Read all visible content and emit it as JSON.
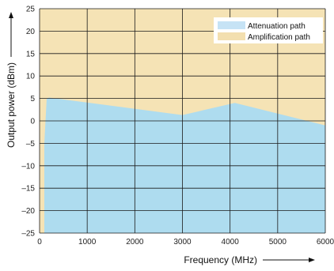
{
  "chart_data": {
    "type": "area",
    "title": "",
    "xlabel": "Frequency (MHz)",
    "ylabel": "Output power (dBm)",
    "xlim": [
      0,
      6000
    ],
    "ylim": [
      -25,
      25
    ],
    "xticks": [
      0,
      1000,
      2000,
      3000,
      4000,
      5000,
      6000
    ],
    "yticks": [
      -25,
      -20,
      -15,
      -10,
      -5,
      0,
      5,
      10,
      15,
      20,
      25
    ],
    "grid": true,
    "legend_position": "top-right",
    "series": [
      {
        "name": "Amplification path",
        "color": "#f5e3b5",
        "region": "above boundary",
        "values": [
          [
            0,
            25
          ],
          [
            6000,
            25
          ]
        ]
      },
      {
        "name": "Attenuation path",
        "color": "#aedcef",
        "region": "below boundary",
        "boundary": [
          [
            0,
            -25
          ],
          [
            100,
            -25
          ],
          [
            100,
            -5
          ],
          [
            150,
            5
          ],
          [
            200,
            5.2
          ],
          [
            3000,
            1.3
          ],
          [
            4100,
            4
          ],
          [
            6000,
            -1
          ],
          [
            6000,
            -25
          ]
        ]
      }
    ],
    "legend": [
      {
        "label": "Attenuation path",
        "color": "#c6e3f5"
      },
      {
        "label": "Amplification path",
        "color": "#f3dfaf"
      }
    ]
  }
}
